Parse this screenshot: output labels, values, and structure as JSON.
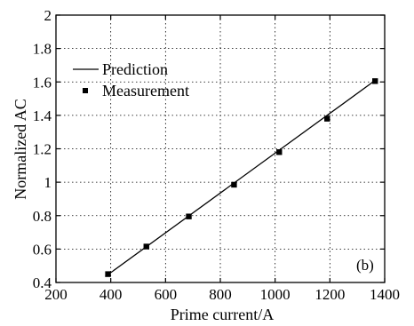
{
  "chart_data": {
    "type": "line",
    "xlabel": "Prime current/A",
    "ylabel": "Normalized AC",
    "xlim": [
      200,
      1400
    ],
    "ylim": [
      0.4,
      2
    ],
    "xticks": [
      200,
      400,
      600,
      800,
      1000,
      1200,
      1400
    ],
    "yticks": [
      0.4,
      0.6,
      0.8,
      1,
      1.2,
      1.4,
      1.6,
      1.8,
      2
    ],
    "grid": true,
    "legend_position": "top-left",
    "panel_label": "(b)",
    "series": [
      {
        "name": "Prediction",
        "kind": "line",
        "color": "#000000",
        "x": [
          380,
          1370
        ],
        "y": [
          0.435,
          1.615
        ]
      },
      {
        "name": "Measurement",
        "kind": "scatter",
        "marker": "square",
        "color": "#000000",
        "x": [
          390,
          530,
          685,
          850,
          1015,
          1190,
          1365
        ],
        "y": [
          0.45,
          0.615,
          0.795,
          0.985,
          1.18,
          1.38,
          1.605
        ]
      }
    ]
  }
}
